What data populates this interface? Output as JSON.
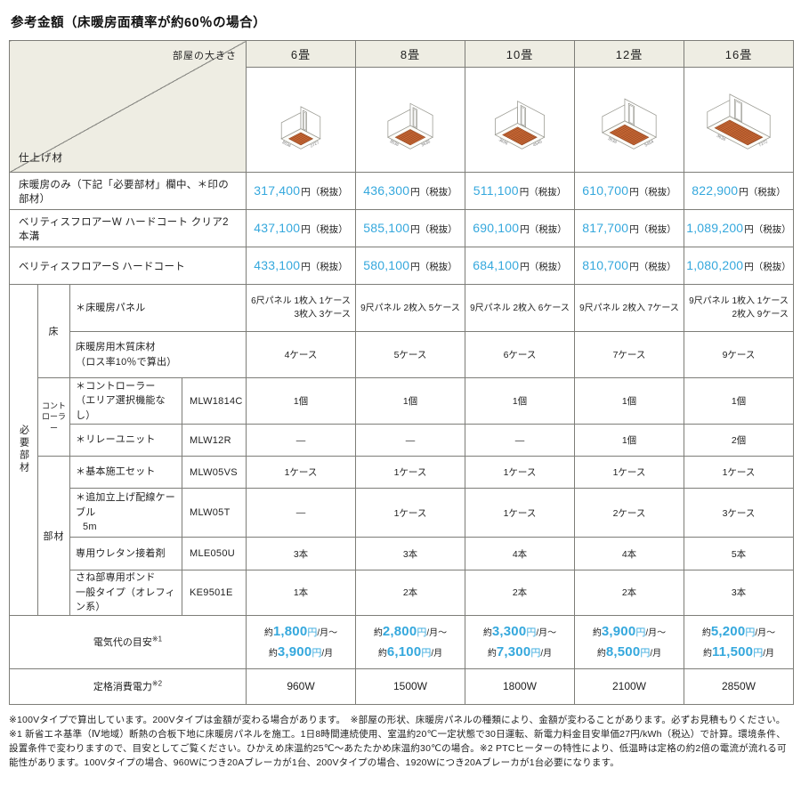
{
  "title": "参考金額（床暖房面積率が約60％の場合）",
  "colors": {
    "accent_blue": "#35a8dd",
    "header_bg": "#eeede3",
    "panel_orange": "#d26d38"
  },
  "table": {
    "corner": {
      "top_right": "部屋の大きさ",
      "bottom_left": "仕上げ材"
    },
    "columns": [
      "6畳",
      "8畳",
      "10畳",
      "12畳",
      "16畳"
    ],
    "rooms": [
      {
        "dim_left": "3636",
        "dim_right": "2727",
        "w": 26,
        "d": 26
      },
      {
        "dim_left": "3636",
        "dim_right": "3636",
        "w": 30,
        "d": 30
      },
      {
        "dim_left": "3636",
        "dim_right": "4545",
        "w": 36,
        "d": 30
      },
      {
        "dim_left": "3636",
        "dim_right": "5454",
        "w": 42,
        "d": 30
      },
      {
        "dim_left": "3636",
        "dim_right": "7272",
        "w": 54,
        "d": 30
      }
    ],
    "price_unit": "円（税抜）",
    "price_rows": [
      {
        "label": "床暖房のみ（下記「必要部材」欄中、＊印の部材）",
        "prices": [
          "317,400",
          "436,300",
          "511,100",
          "610,700",
          "822,900"
        ]
      },
      {
        "label": "ベリティスフロアーW ハードコート クリア2本溝",
        "prices": [
          "437,100",
          "585,100",
          "690,100",
          "817,700",
          "1,089,200"
        ]
      },
      {
        "label": "ベリティスフロアーS ハードコート",
        "prices": [
          "433,100",
          "580,100",
          "684,100",
          "810,700",
          "1,080,200"
        ]
      }
    ],
    "parts": {
      "side_label": "必要部材",
      "group_floor": "床",
      "group_controller_l1": "コント",
      "group_controller_l2": "ローラー",
      "group_parts": "部材",
      "rows": [
        {
          "label": "＊床暖房パネル",
          "label2": "",
          "model": "",
          "values": [
            {
              "l1": "6尺パネル 1枚入 1ケース",
              "l2": "3枚入 3ケース"
            },
            {
              "l1": "9尺パネル 2枚入 5ケース",
              "l2": ""
            },
            {
              "l1": "9尺パネル 2枚入 6ケース",
              "l2": ""
            },
            {
              "l1": "9尺パネル 2枚入 7ケース",
              "l2": ""
            },
            {
              "l1": "9尺パネル 1枚入 1ケース",
              "l2": "2枚入 9ケース"
            }
          ]
        },
        {
          "label": "床暖房用木質床材",
          "label2": "（ロス率10％で算出）",
          "model": "",
          "values": [
            "4ケース",
            "5ケース",
            "6ケース",
            "7ケース",
            "9ケース"
          ]
        },
        {
          "label": "＊コントローラー",
          "label2": "（エリア選択機能なし）",
          "model": "MLW1814C",
          "values": [
            "1個",
            "1個",
            "1個",
            "1個",
            "1個"
          ]
        },
        {
          "label": "＊リレーユニット",
          "label2": "",
          "model": "MLW12R",
          "values": [
            "—",
            "—",
            "—",
            "1個",
            "2個"
          ]
        },
        {
          "label": "＊基本施工セット",
          "label2": "",
          "model": "MLW05VS",
          "values": [
            "1ケース",
            "1ケース",
            "1ケース",
            "1ケース",
            "1ケース"
          ]
        },
        {
          "label": "＊追加立上げ配線ケーブル",
          "label2": "5m",
          "model": "MLW05T",
          "values": [
            "—",
            "1ケース",
            "1ケース",
            "2ケース",
            "3ケース"
          ]
        },
        {
          "label": "専用ウレタン接着剤",
          "label2": "",
          "model": "MLE050U",
          "values": [
            "3本",
            "3本",
            "4本",
            "4本",
            "5本"
          ]
        },
        {
          "label": "さね部専用ボンド",
          "label2": "一般タイプ（オレフィン系）",
          "model": "KE9501E",
          "values": [
            "1本",
            "2本",
            "2本",
            "2本",
            "3本"
          ]
        }
      ]
    },
    "electricity": {
      "label": "電気代の目安",
      "sup": "※1",
      "approx": "約",
      "yen": "円",
      "range_suffix": "/月～",
      "month_suffix": "/月",
      "values": [
        {
          "min": "1,800",
          "max": "3,900"
        },
        {
          "min": "2,800",
          "max": "6,100"
        },
        {
          "min": "3,300",
          "max": "7,300"
        },
        {
          "min": "3,900",
          "max": "8,500"
        },
        {
          "min": "5,200",
          "max": "11,500"
        }
      ]
    },
    "power": {
      "label": "定格消費電力",
      "sup": "※2",
      "values": [
        "960W",
        "1500W",
        "1800W",
        "2100W",
        "2850W"
      ]
    }
  },
  "notes": [
    "※100Vタイプで算出しています。200Vタイプは金額が変わる場合があります。　※部屋の形状、床暖房パネルの種類により、金額が変わることがあります。必ずお見積もりください。",
    "※1 新省エネ基準（Ⅳ地域）断熱の合板下地に床暖房パネルを施工。1日8時間連続使用、室温約20℃一定状態で30日運転、新電力料金目安単価27円/kWh（税込）で計算。環境条件、設置条件で変わりますので、目安としてご覧ください。ひかえめ床温約25℃～あたたかめ床温約30℃の場合。※2 PTCヒーターの特性により、低温時は定格の約2倍の電流が流れる可能性があります。100Vタイプの場合、960Wにつき20Aブレーカが1台、200Vタイプの場合、1920Wにつき20Aブレーカが1台必要になります。"
  ]
}
